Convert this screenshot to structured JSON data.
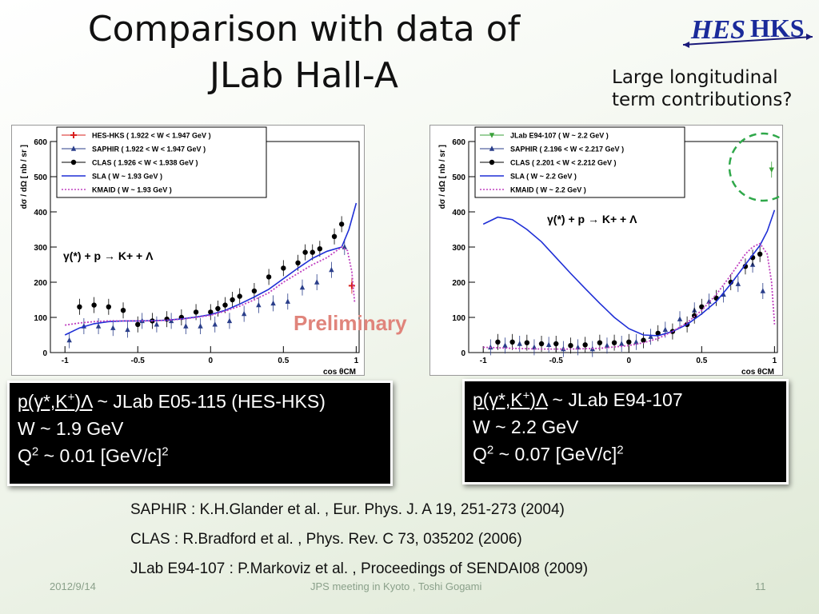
{
  "slide": {
    "title_line1": "Comparison with data of",
    "title_line2": "JLab Hall-A",
    "logo_text_hes": "HES",
    "logo_text_hks": "HKS",
    "note_line1": "Large longitudinal",
    "note_line2": "term contributions?",
    "preliminary": "Preliminary",
    "box_left": {
      "reaction": "p(γ*,K",
      "reaction_sup": "+",
      "reaction_end": ")Λ",
      "experiment": " ~ JLab E05-115 (HES-HKS)",
      "w": "W ~ 1.9 GeV",
      "q_pre": "Q",
      "q_sup": "2",
      "q_mid": " ~ 0.01 [GeV/c]",
      "q_sup2": "2"
    },
    "box_right": {
      "reaction": "p(γ*,K",
      "reaction_sup": "+",
      "reaction_end": ")Λ",
      "experiment": " ~ JLab E94-107",
      "w": "W ~ 2.2 GeV",
      "q_pre": "Q",
      "q_sup": "2",
      "q_mid": " ~ 0.07 [GeV/c]",
      "q_sup2": "2"
    },
    "refs": [
      "SAPHIR :  K.H.Glander et al. , Eur. Phys. J. A 19, 251-273 (2004)",
      "CLAS : R.Bradford et al. , Phys. Rev. C 73, 035202 (2006)",
      "JLab E94-107 : P.Markoviz et al. , Proceedings of SENDAI08 (2009)"
    ],
    "footer_date": "2012/9/14",
    "footer_center": "JPS meeting in Kyoto , Toshi Gogami",
    "footer_page": "11"
  },
  "colors": {
    "hes_red": "#d8201e",
    "saphir_blue": "#2a3e8a",
    "clas_black": "#000000",
    "sla_blue": "#1f2fd6",
    "kmaid_magenta": "#c040c0",
    "jlab_green": "#3aa13a",
    "circle_green": "#2fa84a"
  },
  "chart_data": [
    {
      "type": "scatter",
      "xlabel": "cos θCM",
      "ylabel": "dσ / dΩ  [ nb / sr ]",
      "xlim": [
        -1.1,
        1.02
      ],
      "ylim": [
        0,
        600
      ],
      "xticks": [
        "-1",
        "-0.5",
        "0",
        "0.5",
        "1"
      ],
      "yticks": [
        "0",
        "100",
        "200",
        "300",
        "400",
        "500",
        "600"
      ],
      "annotation": "γ(*) + p → K+ + Λ",
      "legend": [
        "HES-HKS  ( 1.922 < W < 1.947 GeV )",
        "SAPHIR  ( 1.922 < W < 1.947 GeV )",
        "CLAS  ( 1.926 < W < 1.938 GeV )",
        "SLA  ( W ~ 1.93 GeV )",
        "KMAID  ( W ~ 1.93 GeV )"
      ],
      "series": [
        {
          "name": "HES-HKS  ( 1.922 < W < 1.947 GeV )",
          "color": "hes_red",
          "marker": "star",
          "points": [
            [
              0.97,
              190
            ]
          ]
        },
        {
          "name": "SAPHIR  ( 1.922 < W < 1.947 GeV )",
          "color": "saphir_blue",
          "marker": "triangle",
          "points": [
            [
              -0.97,
              35
            ],
            [
              -0.87,
              75
            ],
            [
              -0.77,
              75
            ],
            [
              -0.67,
              70
            ],
            [
              -0.57,
              65
            ],
            [
              -0.47,
              90
            ],
            [
              -0.37,
              80
            ],
            [
              -0.27,
              90
            ],
            [
              -0.17,
              75
            ],
            [
              -0.07,
              75
            ],
            [
              0.03,
              80
            ],
            [
              0.13,
              90
            ],
            [
              0.23,
              110
            ],
            [
              0.33,
              135
            ],
            [
              0.43,
              140
            ],
            [
              0.53,
              145
            ],
            [
              0.63,
              185
            ],
            [
              0.73,
              200
            ],
            [
              0.83,
              235
            ],
            [
              0.92,
              300
            ]
          ]
        },
        {
          "name": "CLAS  ( 1.926 < W < 1.938 GeV )",
          "color": "clas_black",
          "marker": "circle",
          "points": [
            [
              -0.9,
              130
            ],
            [
              -0.8,
              135
            ],
            [
              -0.7,
              130
            ],
            [
              -0.6,
              120
            ],
            [
              -0.5,
              80
            ],
            [
              -0.4,
              90
            ],
            [
              -0.3,
              95
            ],
            [
              -0.2,
              100
            ],
            [
              -0.1,
              115
            ],
            [
              0.0,
              115
            ],
            [
              0.05,
              125
            ],
            [
              0.1,
              135
            ],
            [
              0.15,
              150
            ],
            [
              0.2,
              160
            ],
            [
              0.3,
              175
            ],
            [
              0.4,
              215
            ],
            [
              0.5,
              240
            ],
            [
              0.6,
              255
            ],
            [
              0.65,
              285
            ],
            [
              0.7,
              285
            ],
            [
              0.75,
              295
            ],
            [
              0.85,
              330
            ],
            [
              0.9,
              365
            ]
          ]
        },
        {
          "name": "SLA  ( W ~ 1.93 GeV )",
          "color": "sla_blue",
          "style": "line",
          "x": [
            -1.0,
            -0.9,
            -0.8,
            -0.7,
            -0.6,
            -0.5,
            -0.4,
            -0.3,
            -0.2,
            -0.1,
            0.0,
            0.1,
            0.2,
            0.3,
            0.4,
            0.5,
            0.6,
            0.7,
            0.8,
            0.9,
            0.95,
            1.0
          ],
          "y": [
            50,
            70,
            82,
            88,
            90,
            90,
            91,
            92,
            96,
            101,
            108,
            120,
            138,
            158,
            180,
            210,
            240,
            268,
            288,
            300,
            350,
            425
          ]
        },
        {
          "name": "KMAID  ( W ~ 1.93 GeV )",
          "color": "kmaid_magenta",
          "style": "dotted",
          "x": [
            -1.0,
            -0.9,
            -0.8,
            -0.7,
            -0.6,
            -0.5,
            -0.4,
            -0.3,
            -0.2,
            -0.1,
            0.0,
            0.1,
            0.2,
            0.3,
            0.4,
            0.5,
            0.6,
            0.7,
            0.8,
            0.85,
            0.9,
            0.94,
            0.97,
            0.99
          ],
          "y": [
            78,
            84,
            88,
            90,
            90,
            90,
            90,
            92,
            95,
            100,
            106,
            118,
            132,
            150,
            170,
            200,
            225,
            250,
            270,
            285,
            300,
            290,
            230,
            140
          ]
        }
      ]
    },
    {
      "type": "scatter",
      "xlabel": "cos θCM",
      "ylabel": "dσ / dΩ  [ nb / sr ]",
      "xlim": [
        -1.1,
        1.02
      ],
      "ylim": [
        0,
        600
      ],
      "xticks": [
        "-1",
        "-0.5",
        "0",
        "0.5",
        "1"
      ],
      "yticks": [
        "0",
        "100",
        "200",
        "300",
        "400",
        "500",
        "600"
      ],
      "annotation": "γ(*) + p → K+ + Λ",
      "legend": [
        "JLab E94-107  ( W ~ 2.2 GeV )",
        "SAPHIR  ( 2.196 < W < 2.217 GeV )",
        "CLAS  ( 2.201 < W < 2.212 GeV )",
        "SLA  ( W ~ 2.2 GeV )",
        "KMAID  ( W ~ 2.2 GeV )"
      ],
      "series": [
        {
          "name": "JLab E94-107  ( W ~ 2.2 GeV )",
          "color": "jlab_green",
          "marker": "triangle-down",
          "points": [
            [
              0.98,
              520
            ]
          ]
        },
        {
          "name": "SAPHIR  ( 2.196 < W < 2.217 GeV )",
          "color": "saphir_blue",
          "marker": "triangle",
          "points": [
            [
              -0.95,
              15
            ],
            [
              -0.85,
              20
            ],
            [
              -0.75,
              25
            ],
            [
              -0.65,
              15
            ],
            [
              -0.55,
              22
            ],
            [
              -0.45,
              10
            ],
            [
              -0.35,
              15
            ],
            [
              -0.25,
              10
            ],
            [
              -0.15,
              20
            ],
            [
              -0.05,
              25
            ],
            [
              0.05,
              30
            ],
            [
              0.15,
              45
            ],
            [
              0.25,
              65
            ],
            [
              0.35,
              95
            ],
            [
              0.45,
              120
            ],
            [
              0.55,
              145
            ],
            [
              0.65,
              165
            ],
            [
              0.75,
              195
            ],
            [
              0.85,
              250
            ],
            [
              0.92,
              175
            ]
          ]
        },
        {
          "name": "CLAS  ( 2.201 < W < 2.212 GeV )",
          "color": "clas_black",
          "marker": "circle",
          "points": [
            [
              -0.9,
              30
            ],
            [
              -0.8,
              30
            ],
            [
              -0.7,
              28
            ],
            [
              -0.6,
              25
            ],
            [
              -0.5,
              25
            ],
            [
              -0.4,
              20
            ],
            [
              -0.3,
              22
            ],
            [
              -0.2,
              28
            ],
            [
              -0.1,
              28
            ],
            [
              0.0,
              30
            ],
            [
              0.1,
              35
            ],
            [
              0.2,
              55
            ],
            [
              0.3,
              60
            ],
            [
              0.4,
              80
            ],
            [
              0.45,
              105
            ],
            [
              0.5,
              130
            ],
            [
              0.6,
              155
            ],
            [
              0.7,
              200
            ],
            [
              0.8,
              245
            ],
            [
              0.85,
              270
            ],
            [
              0.9,
              280
            ]
          ]
        },
        {
          "name": "SLA  ( W ~ 2.2 GeV )",
          "color": "sla_blue",
          "style": "line",
          "x": [
            -1.0,
            -0.9,
            -0.8,
            -0.7,
            -0.6,
            -0.5,
            -0.4,
            -0.3,
            -0.2,
            -0.1,
            0.0,
            0.1,
            0.2,
            0.3,
            0.4,
            0.5,
            0.6,
            0.7,
            0.8,
            0.9,
            0.95,
            1.0
          ],
          "y": [
            365,
            385,
            378,
            350,
            315,
            270,
            225,
            182,
            140,
            100,
            68,
            50,
            48,
            60,
            80,
            110,
            145,
            195,
            250,
            305,
            345,
            405
          ]
        },
        {
          "name": "KMAID  ( W ~ 2.2 GeV )",
          "color": "kmaid_magenta",
          "style": "dotted",
          "x": [
            -1.0,
            -0.8,
            -0.6,
            -0.4,
            -0.2,
            0.0,
            0.1,
            0.2,
            0.3,
            0.4,
            0.5,
            0.6,
            0.7,
            0.8,
            0.85,
            0.9,
            0.95,
            0.98,
            1.0
          ],
          "y": [
            15,
            12,
            10,
            10,
            12,
            20,
            28,
            40,
            60,
            85,
            120,
            165,
            220,
            280,
            300,
            310,
            280,
            200,
            80
          ]
        }
      ]
    }
  ]
}
